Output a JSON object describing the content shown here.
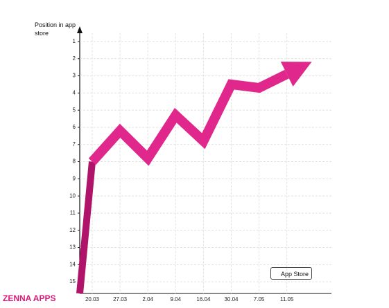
{
  "chart_data": {
    "type": "line",
    "y_label": "Position in app store",
    "categories": [
      "20.03",
      "27.03",
      "2.04",
      "9.04",
      "16.04",
      "30.04",
      "7.05",
      "11.05"
    ],
    "values": [
      8,
      6.2,
      7.8,
      5.3,
      6.8,
      3.5,
      3.7,
      2.9
    ],
    "color": "#e0288c",
    "ylim": [
      15.6,
      0.5
    ],
    "yticks": [
      1,
      2,
      3,
      4,
      5,
      6,
      7,
      8,
      9,
      10,
      11,
      12,
      13,
      14,
      15
    ],
    "grid": true
  },
  "brand": "ZENNA APPS",
  "badge": "App Store"
}
